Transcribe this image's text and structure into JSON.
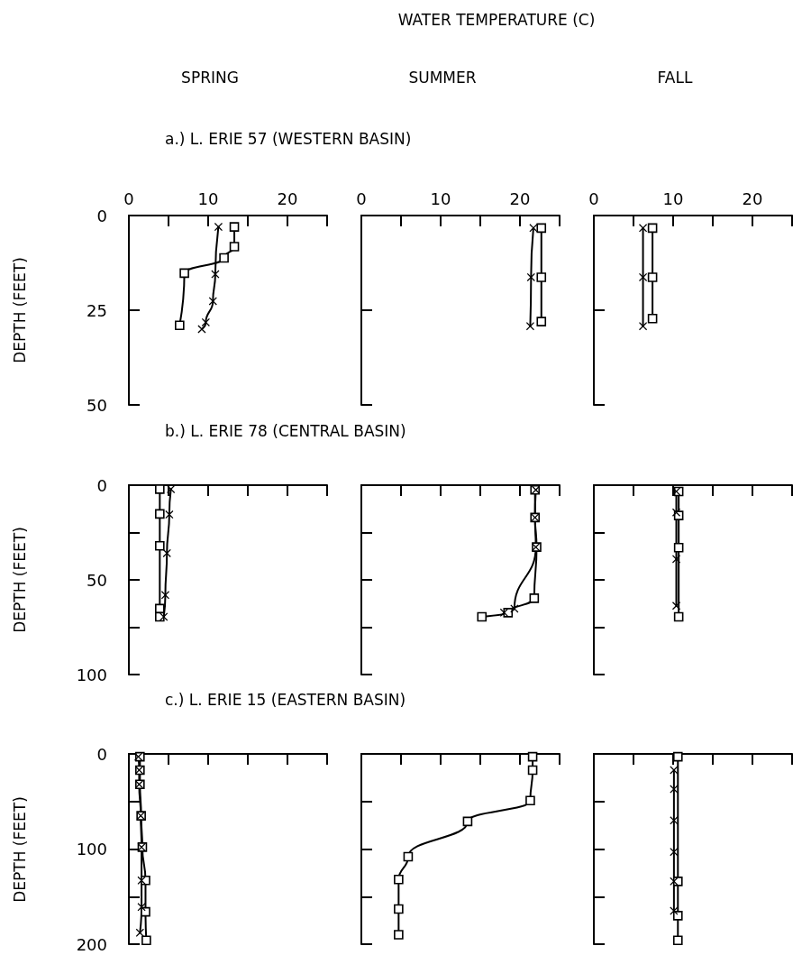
{
  "chart_data": [
    {
      "type": "line",
      "title": "SPRING",
      "subtitle": "a.) L. ERIE 57 (WESTERN BASIN)",
      "ylabel": "DEPTH (FEET)",
      "annotations": [
        "WATER TEMPERATURE (C)"
      ],
      "xlim": [
        0,
        25
      ],
      "xticks": [
        0,
        {
          "value": 5,
          "label": null
        },
        10,
        {
          "value": 15,
          "label": null
        },
        20,
        {
          "value": 25,
          "label": null
        }
      ],
      "ylim": [
        50,
        0
      ],
      "yticks": [
        0,
        25,
        50
      ],
      "series": [
        {
          "color": "#000000",
          "marker": "square",
          "x": [
            13.3,
            13.3,
            12.0,
            7.0,
            6.4
          ],
          "values": [
            3.0,
            8.2,
            11.2,
            15.2,
            29.0
          ]
        },
        {
          "color": "#000000",
          "marker": "cross",
          "x": [
            11.3,
            10.9,
            10.6,
            9.7,
            9.2
          ],
          "values": [
            3.0,
            15.5,
            22.6,
            28.2,
            30.0
          ]
        }
      ]
    },
    {
      "type": "line",
      "title": "SUMMER",
      "tick_labels": "x",
      "xlim": [
        0,
        25
      ],
      "xticks": [
        0,
        {
          "value": 5,
          "label": null
        },
        10,
        {
          "value": 15,
          "label": null
        },
        20,
        {
          "value": 25,
          "label": null
        }
      ],
      "ylim": [
        50,
        0
      ],
      "yticks": [
        0,
        25,
        50
      ],
      "series": [
        {
          "color": "#000000",
          "marker": "square",
          "x": [
            22.7,
            22.7,
            22.7
          ],
          "values": [
            3.3,
            16.3,
            28.0
          ]
        },
        {
          "color": "#000000",
          "marker": "cross",
          "x": [
            21.7,
            21.4,
            21.3
          ],
          "values": [
            3.3,
            16.3,
            29.2
          ]
        }
      ]
    },
    {
      "type": "line",
      "title": "FALL",
      "tick_labels": "x",
      "xlim": [
        0,
        25
      ],
      "xticks": [
        0,
        {
          "value": 5,
          "label": null
        },
        10,
        {
          "value": 15,
          "label": null
        },
        20,
        {
          "value": 25,
          "label": null
        }
      ],
      "ylim": [
        50,
        0
      ],
      "yticks": [
        0,
        25,
        50
      ],
      "series": [
        {
          "color": "#000000",
          "marker": "square",
          "x": [
            7.4,
            7.4,
            7.4
          ],
          "values": [
            3.3,
            16.3,
            27.2
          ]
        },
        {
          "color": "#000000",
          "marker": "cross",
          "x": [
            6.2,
            6.2,
            6.2
          ],
          "values": [
            3.3,
            16.3,
            29.2
          ]
        }
      ]
    },
    {
      "type": "line",
      "subtitle": "b.) L. ERIE 78 (CENTRAL BASIN)",
      "ylabel": "DEPTH (FEET)",
      "tick_labels": "y",
      "xlim": [
        0,
        25
      ],
      "xticks": [
        0,
        {
          "value": 5,
          "label": null
        },
        10,
        {
          "value": 15,
          "label": null
        },
        20,
        {
          "value": 25,
          "label": null
        }
      ],
      "ylim": [
        100,
        0
      ],
      "yticks": [
        0,
        {
          "value": 25,
          "label": null
        },
        50,
        {
          "value": 75,
          "label": null
        },
        100
      ],
      "series": [
        {
          "color": "#000000",
          "marker": "square",
          "x": [
            3.9,
            3.9,
            3.9,
            3.9,
            3.9
          ],
          "values": [
            2.1,
            15.2,
            32.0,
            65.2,
            69.5
          ]
        },
        {
          "color": "#000000",
          "marker": "cross",
          "x": [
            5.3,
            5.1,
            4.8,
            4.6,
            4.4
          ],
          "values": [
            2.1,
            15.5,
            35.9,
            58.0,
            69.5
          ]
        }
      ]
    },
    {
      "type": "line",
      "tick_labels": false,
      "xlim": [
        0,
        25
      ],
      "xticks": [
        0,
        {
          "value": 5,
          "label": null
        },
        10,
        {
          "value": 15,
          "label": null
        },
        20,
        {
          "value": 25,
          "label": null
        }
      ],
      "ylim": [
        100,
        0
      ],
      "yticks": [
        0,
        {
          "value": 25,
          "label": null
        },
        50,
        {
          "value": 75,
          "label": null
        },
        100
      ],
      "series": [
        {
          "color": "#000000",
          "marker": "square",
          "x": [
            21.9,
            21.9,
            22.1,
            21.8,
            18.5,
            15.2
          ],
          "values": [
            2.5,
            17.1,
            32.7,
            59.7,
            67.3,
            69.5
          ]
        },
        {
          "color": "#000000",
          "marker": "cross",
          "x": [
            22.0,
            21.9,
            22.0,
            19.3,
            18.0
          ],
          "values": [
            2.5,
            17.1,
            32.7,
            65.2,
            67.3
          ]
        }
      ]
    },
    {
      "type": "line",
      "tick_labels": false,
      "xlim": [
        0,
        25
      ],
      "xticks": [
        0,
        {
          "value": 5,
          "label": null
        },
        10,
        {
          "value": 15,
          "label": null
        },
        20,
        {
          "value": 25,
          "label": null
        }
      ],
      "ylim": [
        100,
        0
      ],
      "yticks": [
        0,
        {
          "value": 25,
          "label": null
        },
        50,
        {
          "value": 75,
          "label": null
        },
        100
      ],
      "series": [
        {
          "color": "#000000",
          "marker": "square",
          "x": [
            10.7,
            10.7,
            10.7,
            10.7
          ],
          "values": [
            3.3,
            16.0,
            33.0,
            69.5
          ]
        },
        {
          "color": "#000000",
          "marker": "cross",
          "x": [
            10.4,
            10.4,
            10.4,
            10.4
          ],
          "values": [
            3.3,
            14.4,
            39.0,
            63.7
          ]
        }
      ]
    },
    {
      "type": "line",
      "subtitle": "c.) L. ERIE 15 (EASTERN BASIN)",
      "ylabel": "DEPTH (FEET)",
      "tick_labels": "y",
      "xlim": [
        0,
        25
      ],
      "xticks": [
        0,
        {
          "value": 5,
          "label": null
        },
        10,
        {
          "value": 15,
          "label": null
        },
        20,
        {
          "value": 25,
          "label": null
        }
      ],
      "ylim": [
        200,
        0
      ],
      "yticks": [
        0,
        {
          "value": 50,
          "label": null
        },
        100,
        {
          "value": 150,
          "label": null
        },
        200
      ],
      "series": [
        {
          "color": "#000000",
          "marker": "square",
          "x": [
            1.4,
            1.4,
            1.4,
            1.55,
            1.7,
            2.1,
            2.1,
            2.2
          ],
          "values": [
            3,
            17,
            32,
            65,
            98,
            133,
            166,
            196
          ]
        },
        {
          "color": "#000000",
          "marker": "cross",
          "x": [
            1.2,
            1.3,
            1.3,
            1.5,
            1.6,
            1.6,
            1.6,
            1.4
          ],
          "values": [
            3,
            17,
            32,
            65,
            98,
            133,
            161,
            188
          ]
        }
      ]
    },
    {
      "type": "line",
      "tick_labels": false,
      "xlim": [
        0,
        25
      ],
      "xticks": [
        0,
        {
          "value": 5,
          "label": null
        },
        10,
        {
          "value": 15,
          "label": null
        },
        20,
        {
          "value": 25,
          "label": null
        }
      ],
      "ylim": [
        200,
        0
      ],
      "yticks": [
        0,
        {
          "value": 50,
          "label": null
        },
        100,
        {
          "value": 150,
          "label": null
        },
        200
      ],
      "series": [
        {
          "color": "#000000",
          "marker": "square",
          "x": [
            21.6,
            21.6,
            21.3,
            13.4,
            5.9,
            4.7,
            4.7,
            4.7
          ],
          "values": [
            3,
            17,
            49,
            71,
            108,
            132,
            163,
            190
          ]
        }
      ]
    },
    {
      "type": "line",
      "tick_labels": false,
      "xlim": [
        0,
        25
      ],
      "xticks": [
        0,
        {
          "value": 5,
          "label": null
        },
        10,
        {
          "value": 15,
          "label": null
        },
        20,
        {
          "value": 25,
          "label": null
        }
      ],
      "ylim": [
        200,
        0
      ],
      "yticks": [
        0,
        {
          "value": 50,
          "label": null
        },
        100,
        {
          "value": 150,
          "label": null
        },
        200
      ],
      "series": [
        {
          "color": "#000000",
          "marker": "square",
          "x": [
            10.6,
            10.6,
            10.6,
            10.6
          ],
          "values": [
            3,
            134,
            170,
            196
          ]
        },
        {
          "color": "#000000",
          "marker": "cross",
          "x": [
            10.1,
            10.1,
            10.1,
            10.1,
            10.1,
            10.1
          ],
          "values": [
            17,
            37,
            70,
            103,
            134,
            165
          ]
        }
      ]
    }
  ]
}
